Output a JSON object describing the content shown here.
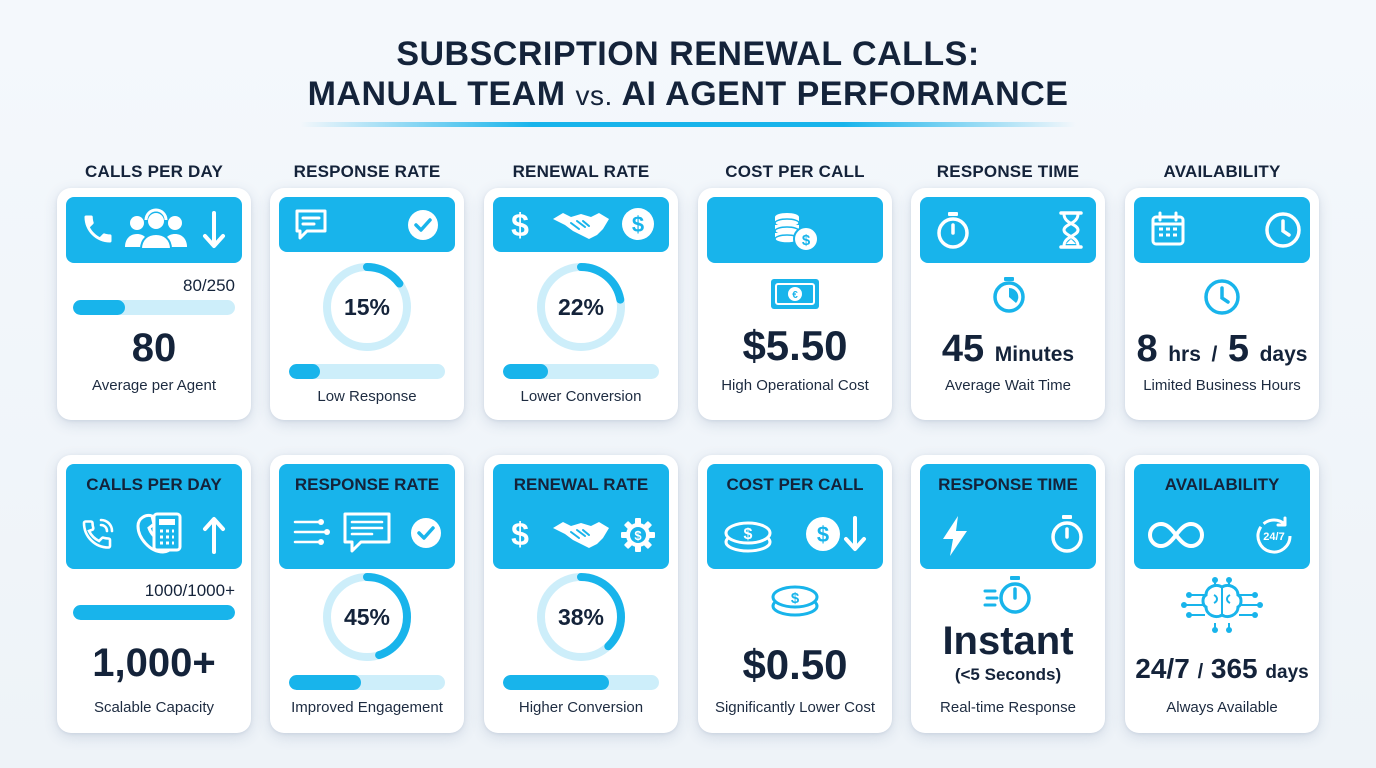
{
  "title": {
    "line1": "SUBSCRIPTION RENEWAL CALLS:",
    "line2_a": "MANUAL TEAM",
    "line2_vs": "vs.",
    "line2_b": "AI AGENT PERFORMANCE"
  },
  "colors": {
    "accent": "#18b4eb",
    "track": "#cdeefa",
    "text": "#14233a",
    "background": "#f1f5f9"
  },
  "manual": {
    "calls": {
      "label": "CALLS PER DAY",
      "icons": [
        "phone-icon",
        "agent-team-headset-icon",
        "arrow-down-icon"
      ],
      "ratio": "80/250",
      "progress": 0.32,
      "value": "80",
      "caption": "Average per Agent"
    },
    "response": {
      "label": "RESPONSE RATE",
      "icons": [
        "chat-bubble-icon",
        "checkmark-circle-icon"
      ],
      "value": "15%",
      "ring_percent": 15,
      "progress": 0.2,
      "caption": "Low Response"
    },
    "renewal": {
      "label": "RENEWAL RATE",
      "icons": [
        "dollar-sign-icon",
        "handshake-icon",
        "dollar-coin-icon"
      ],
      "value": "22%",
      "ring_percent": 22,
      "progress": 0.29,
      "caption": "Lower Conversion"
    },
    "cost": {
      "label": "COST PER CALL",
      "icons": [
        "coin-stack-icon",
        "banknote-icon"
      ],
      "value": "$5.50",
      "caption": "High Operational Cost"
    },
    "time": {
      "label": "RESPONSE TIME",
      "icons": [
        "stopwatch-icon",
        "hourglass-icon",
        "timer-icon"
      ],
      "value_num": "45",
      "value_unit": "Minutes",
      "caption": "Average Wait Time"
    },
    "availability": {
      "label": "AVAILABILITY",
      "icons": [
        "calendar-icon",
        "clock-icon",
        "clock-small-icon"
      ],
      "value_a": "8",
      "unit_a": "hrs",
      "sep": "/",
      "value_b": "5",
      "unit_b": "days",
      "caption": "Limited Business Hours"
    }
  },
  "ai": {
    "calls": {
      "label": "CALLS PER DAY",
      "icons": [
        "phone-ringing-icon",
        "phone-dialpad-icon",
        "arrow-up-icon"
      ],
      "ratio": "1000/1000+",
      "progress": 1.0,
      "value": "1,000+",
      "caption": "Scalable Capacity"
    },
    "response": {
      "label": "RESPONSE RATE",
      "icons": [
        "speed-lines-chat-icon",
        "checkmark-circle-icon"
      ],
      "value": "45%",
      "ring_percent": 45,
      "progress": 0.46,
      "caption": "Improved Engagement"
    },
    "renewal": {
      "label": "RENEWAL RATE",
      "icons": [
        "dollar-sign-icon",
        "handshake-icon",
        "gear-dollar-icon"
      ],
      "value": "38%",
      "ring_percent": 38,
      "progress": 0.68,
      "caption": "Higher Conversion"
    },
    "cost": {
      "label": "COST PER CALL",
      "icons": [
        "coin-icon",
        "dollar-down-icon",
        "coin-small-icon"
      ],
      "value": "$0.50",
      "caption": "Significantly Lower Cost"
    },
    "time": {
      "label": "RESPONSE TIME",
      "icons": [
        "lightning-icon",
        "stopwatch-icon",
        "fast-timer-icon"
      ],
      "value": "Instant",
      "value_detail": "(<5 Seconds)",
      "caption": "Real-time Response"
    },
    "availability": {
      "label": "AVAILABILITY",
      "icons": [
        "infinity-icon",
        "24-7-icon",
        "ai-brain-icon"
      ],
      "value_a": "24/7",
      "sep": "/",
      "value_b": "365",
      "unit_b": "days",
      "caption": "Always Available"
    }
  }
}
